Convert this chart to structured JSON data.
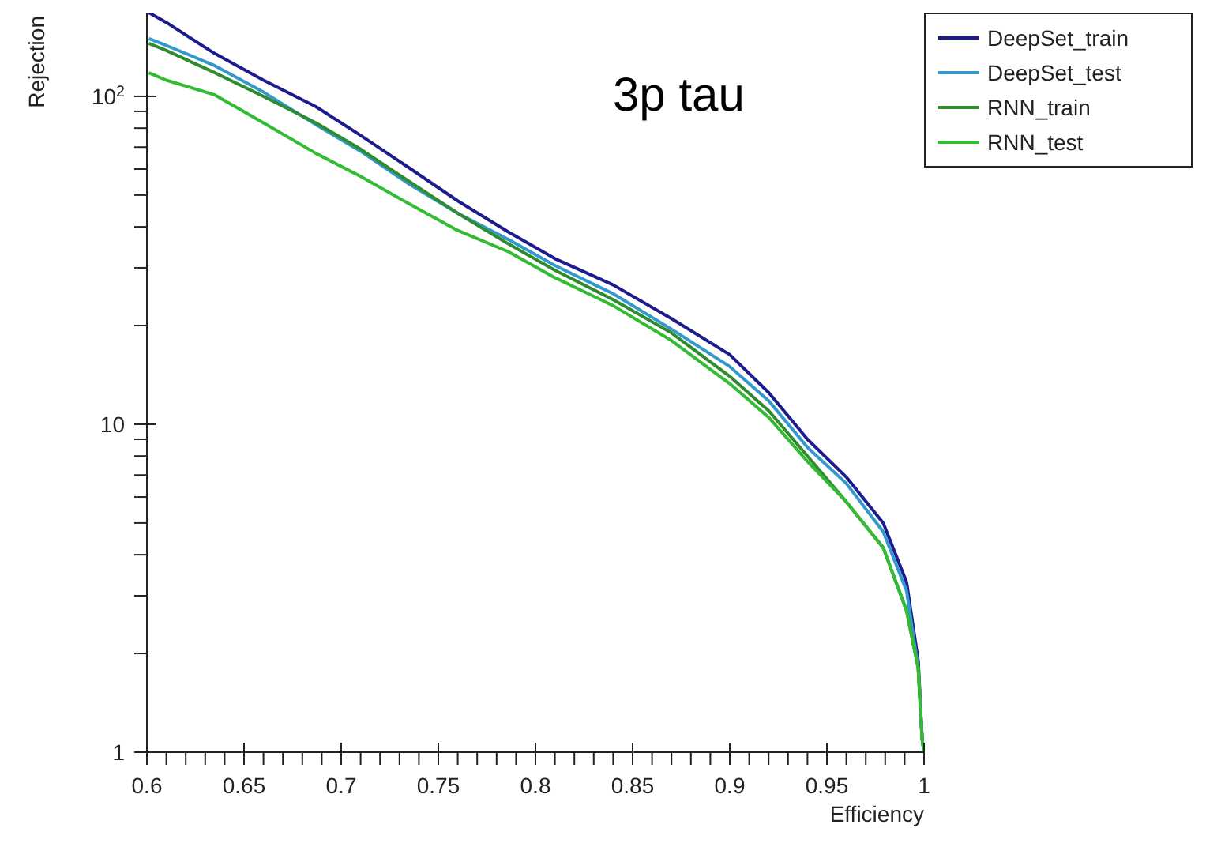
{
  "chart_data": {
    "type": "line",
    "title": "3p tau",
    "xlabel": "Efficiency",
    "ylabel": "Rejection",
    "log": "y",
    "legend": "top right",
    "grid": false,
    "marker": "none",
    "line_style": "solid",
    "xlim": [
      0.6,
      1
    ],
    "ylim": [
      1,
      180
    ],
    "xticks": [
      0.6,
      {
        "value": 0.61,
        "label": null
      },
      {
        "value": 0.62,
        "label": null
      },
      {
        "value": 0.63,
        "label": null
      },
      {
        "value": 0.64,
        "label": null
      },
      0.65,
      {
        "value": 0.66,
        "label": null
      },
      {
        "value": 0.67,
        "label": null
      },
      {
        "value": 0.68,
        "label": null
      },
      {
        "value": 0.69,
        "label": null
      },
      0.7,
      {
        "value": 0.71,
        "label": null
      },
      {
        "value": 0.72,
        "label": null
      },
      {
        "value": 0.73,
        "label": null
      },
      {
        "value": 0.74,
        "label": null
      },
      0.75,
      {
        "value": 0.76,
        "label": null
      },
      {
        "value": 0.77,
        "label": null
      },
      {
        "value": 0.78,
        "label": null
      },
      {
        "value": 0.79,
        "label": null
      },
      0.8,
      {
        "value": 0.81,
        "label": null
      },
      {
        "value": 0.82,
        "label": null
      },
      {
        "value": 0.83,
        "label": null
      },
      {
        "value": 0.84,
        "label": null
      },
      0.85,
      {
        "value": 0.86,
        "label": null
      },
      {
        "value": 0.87,
        "label": null
      },
      {
        "value": 0.88,
        "label": null
      },
      {
        "value": 0.89,
        "label": null
      },
      0.9,
      {
        "value": 0.91,
        "label": null
      },
      {
        "value": 0.92,
        "label": null
      },
      {
        "value": 0.93,
        "label": null
      },
      {
        "value": 0.94,
        "label": null
      },
      0.95,
      {
        "value": 0.96,
        "label": null
      },
      {
        "value": 0.97,
        "label": null
      },
      {
        "value": 0.98,
        "label": null
      },
      {
        "value": 0.99,
        "label": null
      },
      1
    ],
    "yticks": [
      1,
      {
        "value": 2,
        "label": null
      },
      {
        "value": 3,
        "label": null
      },
      {
        "value": 4,
        "label": null
      },
      {
        "value": 5,
        "label": null
      },
      {
        "value": 6,
        "label": null
      },
      {
        "value": 7,
        "label": null
      },
      {
        "value": 8,
        "label": null
      },
      {
        "value": 9,
        "label": null
      },
      10,
      {
        "value": 20,
        "label": null
      },
      {
        "value": 30,
        "label": null
      },
      {
        "value": 40,
        "label": null
      },
      {
        "value": 50,
        "label": null
      },
      {
        "value": 60,
        "label": null
      },
      {
        "value": 70,
        "label": null
      },
      {
        "value": 80,
        "label": null
      },
      {
        "value": 90,
        "label": null
      },
      {
        "value": 100,
        "label": "10$^{2}$"
      }
    ],
    "x": [
      0.601,
      0.61,
      0.635,
      0.66,
      0.687,
      0.71,
      0.735,
      0.76,
      0.786,
      0.81,
      0.84,
      0.87,
      0.9,
      0.92,
      0.94,
      0.96,
      0.979,
      0.991,
      0.997,
      0.999,
      1.0
    ],
    "series": [
      {
        "name": "DeepSet_train",
        "color": "#1c1c8c",
        "values": [
          180,
          168,
          135,
          112,
          93,
          76,
          60.5,
          48,
          38.6,
          32,
          26.6,
          21,
          16.3,
          12.5,
          9,
          6.9,
          5,
          3.3,
          1.9,
          1.1,
          1
        ]
      },
      {
        "name": "DeepSet_test",
        "color": "#3399cc",
        "values": [
          150,
          143,
          124,
          103,
          82,
          68,
          54,
          44,
          36.6,
          30.5,
          25,
          19.5,
          15,
          11.8,
          8.5,
          6.6,
          4.7,
          3.1,
          1.8,
          1.1,
          1
        ]
      },
      {
        "name": "RNN_train",
        "color": "#2e8b2e",
        "values": [
          145,
          138,
          118,
          100,
          83,
          69,
          55,
          44,
          35.5,
          29.5,
          24,
          19,
          14,
          11,
          8,
          5.8,
          4.2,
          2.7,
          1.8,
          1.1,
          1
        ]
      },
      {
        "name": "RNN_test",
        "color": "#33bb33",
        "values": [
          118,
          112,
          101,
          83,
          67,
          57,
          47,
          39,
          33.6,
          28,
          23,
          18,
          13.3,
          10.5,
          7.7,
          5.8,
          4.2,
          2.7,
          1.8,
          1.1,
          1
        ]
      }
    ]
  }
}
